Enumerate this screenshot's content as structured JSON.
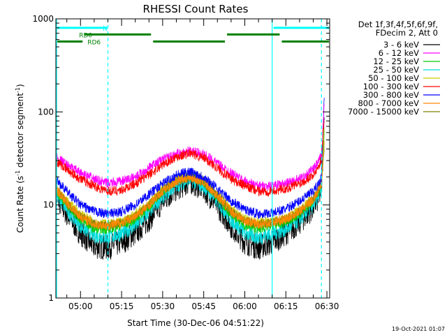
{
  "chart_data": {
    "type": "line",
    "title": "RHESSI Count Rates",
    "xlabel": "Start Time (30-Dec-06 04:51:22)",
    "ylabel_parts": [
      "Count Rate (s",
      "-1",
      " detector segment",
      "-1",
      ")"
    ],
    "y_scale": "log",
    "ylim": [
      1,
      1000
    ],
    "xlim": [
      "04:51",
      "06:31"
    ],
    "y_ticks": [
      {
        "value": 1,
        "label": "1"
      },
      {
        "value": 10,
        "label": "10"
      },
      {
        "value": 100,
        "label": "100"
      },
      {
        "value": 1000,
        "label": "1000"
      }
    ],
    "x_ticks": [
      {
        "value": "05:00",
        "label": "05:00"
      },
      {
        "value": "05:15",
        "label": "05:15"
      },
      {
        "value": "05:30",
        "label": "05:30"
      },
      {
        "value": "05:45",
        "label": "05:45"
      },
      {
        "value": "06:00",
        "label": "06:00"
      },
      {
        "value": "06:15",
        "label": "06:15"
      },
      {
        "value": "06:30",
        "label": "06:30"
      }
    ],
    "legend_header": [
      "Det 1f,3f,4f,5f,6f,9f,",
      "FDecim 2, Att 0"
    ],
    "legend_position": "right",
    "series": [
      {
        "name": "3 - 6 keV",
        "color": "#000000",
        "x": [
          "04:51",
          "04:55",
          "05:00",
          "05:05",
          "05:10",
          "05:15",
          "05:20",
          "05:25",
          "05:30",
          "05:35",
          "05:40",
          "05:45",
          "05:50",
          "05:55",
          "06:00",
          "06:05",
          "06:10",
          "06:15",
          "06:20",
          "06:25",
          "06:27",
          "06:28",
          "06:29"
        ],
        "y": [
          12.5,
          8,
          5,
          3.6,
          3.5,
          4,
          5,
          7,
          11,
          15,
          18,
          15,
          10,
          6,
          4,
          3.5,
          4,
          5,
          6.5,
          9.5,
          12,
          15,
          80
        ]
      },
      {
        "name": "6 - 12 keV",
        "color": "#ff00ff",
        "x": [
          "04:51",
          "04:55",
          "05:00",
          "05:05",
          "05:10",
          "05:15",
          "05:20",
          "05:25",
          "05:30",
          "05:35",
          "05:40",
          "05:45",
          "05:50",
          "05:55",
          "06:00",
          "06:05",
          "06:10",
          "06:15",
          "06:20",
          "06:25",
          "06:27",
          "06:28",
          "06:29"
        ],
        "y": [
          33,
          27,
          22,
          19,
          17,
          18,
          20,
          25,
          31,
          35,
          38,
          35,
          28,
          22,
          18,
          16,
          16,
          17,
          19,
          24,
          29,
          35,
          110
        ]
      },
      {
        "name": "12 - 25 keV",
        "color": "#00cc00",
        "x": [
          "04:51",
          "04:55",
          "05:00",
          "05:05",
          "05:10",
          "05:15",
          "05:20",
          "05:25",
          "05:30",
          "05:35",
          "05:40",
          "05:45",
          "05:50",
          "05:55",
          "06:00",
          "06:05",
          "06:10",
          "06:15",
          "06:20",
          "06:25",
          "06:27",
          "06:28",
          "06:29"
        ],
        "y": [
          14,
          10,
          7,
          5.5,
          5.5,
          6,
          7,
          9.5,
          14,
          18.5,
          21,
          18,
          12,
          8,
          6,
          5.5,
          6,
          6.5,
          8,
          11,
          14,
          17,
          60
        ]
      },
      {
        "name": "25 - 50 keV",
        "color": "#00dddd",
        "x": [
          "04:51",
          "04:55",
          "05:00",
          "05:05",
          "05:10",
          "05:15",
          "05:20",
          "05:25",
          "05:30",
          "05:35",
          "05:40",
          "05:45",
          "05:50",
          "05:55",
          "06:00",
          "06:05",
          "06:10",
          "06:15",
          "06:20",
          "06:25",
          "06:27",
          "06:28",
          "06:29"
        ],
        "y": [
          13,
          9,
          6,
          4.7,
          4.5,
          5,
          6,
          8.5,
          12.5,
          16.5,
          19,
          16,
          11,
          7,
          5,
          4.5,
          5,
          5.5,
          7,
          10,
          13,
          16,
          50
        ]
      },
      {
        "name": "50 - 100 keV",
        "color": "#cccc00",
        "x": [
          "04:51",
          "04:55",
          "05:00",
          "05:05",
          "05:10",
          "05:15",
          "05:20",
          "05:25",
          "05:30",
          "05:35",
          "05:40",
          "05:45",
          "05:50",
          "05:55",
          "06:00",
          "06:05",
          "06:10",
          "06:15",
          "06:20",
          "06:25",
          "06:27",
          "06:28",
          "06:29"
        ],
        "y": [
          15,
          11,
          8,
          6.5,
          6.2,
          6.6,
          8,
          10.5,
          15,
          19,
          21,
          18.5,
          13,
          9,
          7,
          6.5,
          6.7,
          7.2,
          9,
          12,
          15,
          18,
          65
        ]
      },
      {
        "name": "100 - 300 keV",
        "color": "#ff0000",
        "x": [
          "04:51",
          "04:55",
          "05:00",
          "05:05",
          "05:10",
          "05:15",
          "05:20",
          "05:25",
          "05:30",
          "05:35",
          "05:40",
          "05:45",
          "05:50",
          "05:55",
          "06:00",
          "06:05",
          "06:10",
          "06:15",
          "06:20",
          "06:25",
          "06:27",
          "06:28",
          "06:29"
        ],
        "y": [
          30,
          24,
          19,
          16,
          14,
          14.5,
          17,
          21,
          27,
          33,
          36,
          32,
          25,
          19,
          16,
          14,
          14,
          15,
          17,
          21,
          26,
          32,
          90
        ]
      },
      {
        "name": "300 - 800 keV",
        "color": "#0000ff",
        "x": [
          "04:51",
          "04:55",
          "05:00",
          "05:05",
          "05:10",
          "05:15",
          "05:20",
          "05:25",
          "05:30",
          "05:35",
          "05:40",
          "05:45",
          "05:50",
          "05:55",
          "06:00",
          "06:05",
          "06:10",
          "06:15",
          "06:20",
          "06:25",
          "06:27",
          "06:28",
          "06:29"
        ],
        "y": [
          19,
          14,
          10,
          8.5,
          8,
          8.5,
          10,
          13,
          17,
          21,
          23,
          20,
          15,
          11,
          9,
          8,
          8.2,
          9,
          11,
          14,
          17,
          20,
          140
        ]
      },
      {
        "name": "800 - 7000 keV",
        "color": "#ff8800",
        "x": [
          "04:51",
          "04:55",
          "05:00",
          "05:05",
          "05:10",
          "05:15",
          "05:20",
          "05:25",
          "05:30",
          "05:35",
          "05:40",
          "05:45",
          "05:50",
          "05:55",
          "06:00",
          "06:05",
          "06:10",
          "06:15",
          "06:20",
          "06:25",
          "06:27",
          "06:28",
          "06:29"
        ],
        "y": [
          15,
          10.5,
          7.5,
          6.2,
          6,
          6.4,
          7.5,
          10,
          14,
          18,
          20,
          17.5,
          12.5,
          8.5,
          6.8,
          6.2,
          6.5,
          7,
          8.5,
          11.5,
          14.5,
          17,
          45
        ]
      },
      {
        "name": "7000 - 15000 keV",
        "color": "#808000",
        "x": [
          "04:51",
          "04:55",
          "05:00",
          "05:05",
          "05:10",
          "05:15",
          "05:20",
          "05:25",
          "05:30",
          "05:35",
          "05:40",
          "05:45",
          "05:50",
          "05:55",
          "06:00",
          "06:05",
          "06:10",
          "06:15",
          "06:20",
          "06:25",
          "06:27",
          "06:28",
          "06:29"
        ],
        "y": [
          15,
          10.5,
          7.5,
          6.2,
          6,
          6.4,
          7.5,
          10,
          14,
          18,
          20,
          17.5,
          12.5,
          8.5,
          6.8,
          6.2,
          6.5,
          7,
          8.5,
          11.5,
          14.5,
          17,
          40
        ]
      }
    ],
    "annotations": {
      "solid_vlines": [
        "04:51",
        "06:10"
      ],
      "dashed_vlines": [
        "05:10",
        "06:28"
      ],
      "bars": [
        {
          "label": "N",
          "color": "#00ffff",
          "start": "04:51",
          "end": "05:10",
          "level": 800
        },
        {
          "label": "",
          "color": "#00ffff",
          "start": "06:10",
          "end": "06:31",
          "level": 800
        },
        {
          "label": "RD0",
          "color": "#008000",
          "start": "05:01",
          "end": "05:26",
          "level": 680
        },
        {
          "label": "",
          "color": "#008000",
          "start": "05:53",
          "end": "06:13",
          "level": 680
        },
        {
          "label": "RD6",
          "color": "#008000",
          "start": "04:51",
          "end": "05:01",
          "level": 570
        },
        {
          "label": "",
          "color": "#008000",
          "start": "05:26",
          "end": "05:53",
          "level": 570
        },
        {
          "label": "",
          "color": "#008000",
          "start": "06:13",
          "end": "06:31",
          "level": 570
        }
      ]
    }
  },
  "footer": {
    "timestamp": "19-Oct-2021 01:07"
  }
}
